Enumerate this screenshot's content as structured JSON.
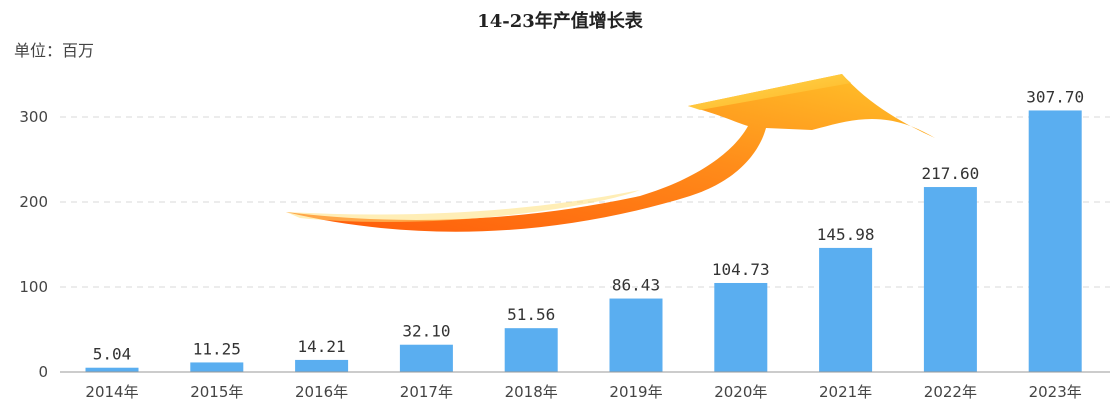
{
  "chart_data": {
    "type": "bar",
    "title": "14-23年产值增长表",
    "unit_label": "单位：百万",
    "categories": [
      "2014年",
      "2015年",
      "2016年",
      "2017年",
      "2018年",
      "2019年",
      "2020年",
      "2021年",
      "2022年",
      "2023年"
    ],
    "values": [
      5.04,
      11.25,
      14.21,
      32.1,
      51.56,
      86.43,
      104.73,
      145.98,
      217.6,
      307.7
    ],
    "value_labels": [
      "5.04",
      "11.25",
      "14.21",
      "32.10",
      "51.56",
      "86.43",
      "104.73",
      "145.98",
      "217.60",
      "307.70"
    ],
    "yticks": [
      "0",
      "100",
      "200",
      "300"
    ],
    "ylim": [
      0,
      300
    ],
    "grid": true,
    "colors": {
      "bar": "#5aaef0",
      "arrow_light": "#ffd23a",
      "arrow_dark": "#ff6a10"
    },
    "decoration": "upward-trend-arrow"
  }
}
